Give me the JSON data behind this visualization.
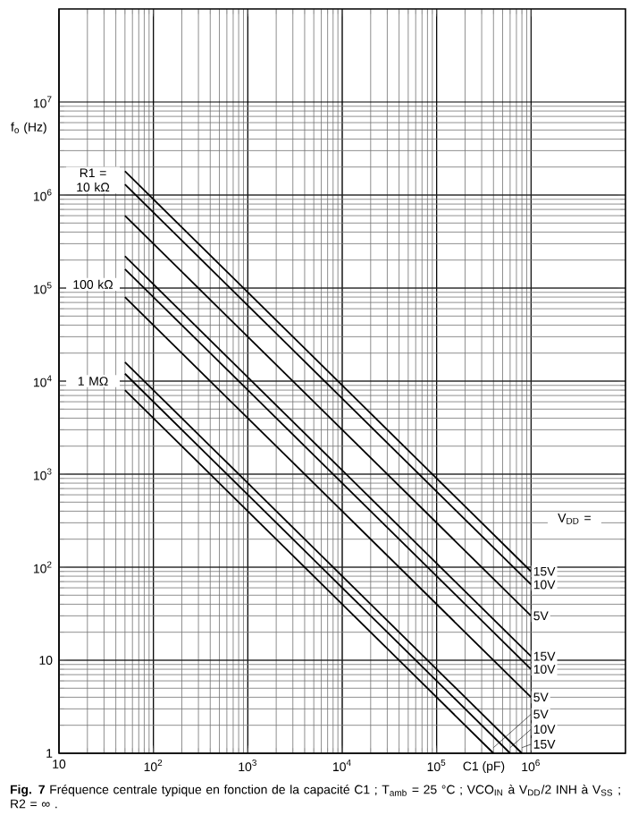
{
  "chart_data": {
    "type": "line",
    "title": "**Fig. 7** Fréquence centrale typique en fonction de la capacité C1 ; T$_{amb}$ = 25 °C ; VCO$_{IN}$ à V$_{DD}$/2 INH à V$_{SS}$ ; R2 = ∞ .",
    "xlabel": "C1 (pF)",
    "ylabel": "f$_{o}$ (Hz)",
    "log": "xy",
    "grid": true,
    "xlim": [
      10,
      10000000
    ],
    "ylim": [
      1,
      100000000
    ],
    "xticks": [
      10,
      {
        "value": 100,
        "label": "10$^{2}$"
      },
      {
        "value": 1000,
        "label": "10$^{3}$"
      },
      {
        "value": 10000,
        "label": "10$^{4}$"
      },
      {
        "value": 100000,
        "label": "10$^{5}$"
      },
      {
        "value": 1000000,
        "label": "10$^{6}$"
      }
    ],
    "yticks": [
      1,
      10,
      {
        "value": 100,
        "label": "10$^{2}$"
      },
      {
        "value": 1000,
        "label": "10$^{3}$"
      },
      {
        "value": 10000,
        "label": "10$^{4}$"
      },
      {
        "value": 100000,
        "label": "10$^{5}$"
      },
      {
        "value": 1000000,
        "label": "10$^{6}$"
      },
      {
        "value": 10000000,
        "label": "10$^{7}$"
      }
    ],
    "series": [
      {
        "name": "15V",
        "color": "#000000",
        "x": [
          50,
          1000000
        ],
        "values": [
          1800000,
          90
        ]
      },
      {
        "name": "10V",
        "color": "#000000",
        "x": [
          50,
          1000000
        ],
        "values": [
          1300000,
          65
        ]
      },
      {
        "name": "5V",
        "color": "#000000",
        "x": [
          50,
          1000000
        ],
        "values": [
          600000,
          30
        ]
      },
      {
        "name": "15V",
        "color": "#000000",
        "x": [
          50,
          1000000
        ],
        "values": [
          220000,
          11
        ]
      },
      {
        "name": "10V",
        "color": "#000000",
        "x": [
          50,
          1000000
        ],
        "values": [
          160000,
          8
        ]
      },
      {
        "name": "5V",
        "color": "#000000",
        "x": [
          50,
          1000000
        ],
        "values": [
          80000,
          4
        ]
      },
      {
        "name": "15V",
        "color": "#000000",
        "x": [
          50,
          800000
        ],
        "values": [
          16000,
          1
        ]
      },
      {
        "name": "10V",
        "color": "#000000",
        "x": [
          50,
          600000
        ],
        "values": [
          12000,
          1
        ]
      },
      {
        "name": "5V",
        "color": "#000000",
        "x": [
          50,
          400000
        ],
        "values": [
          8000,
          1
        ]
      }
    ],
    "annotations": [
      "R1 = 10 kΩ",
      "100 kΩ",
      "1 MΩ",
      "V$_{DD}$ ="
    ]
  }
}
